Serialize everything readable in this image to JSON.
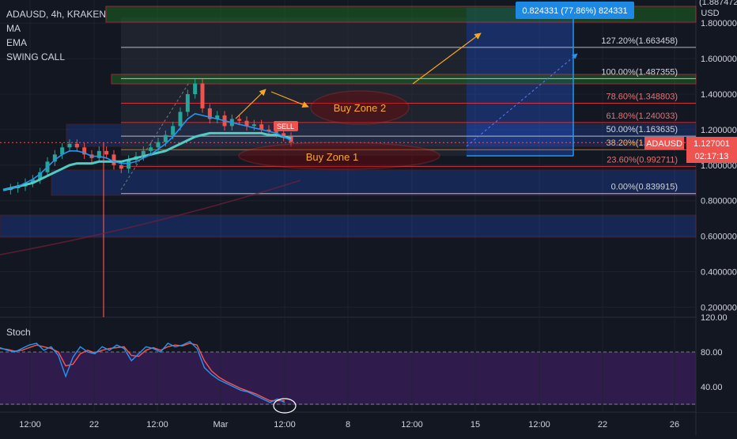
{
  "header": {
    "symbol": "ADAUSD, 4h, KRAKEN",
    "indicators": [
      "MA",
      "EMA",
      "SWING CALL"
    ]
  },
  "currency": "USD",
  "oscillator_label": "Stoch",
  "price_tag": {
    "symbol": "ADAUSD",
    "price": "1.127001",
    "countdown": "02:17:13"
  },
  "measure_label": "0.824331 (77.86%) 824331",
  "top_partial_label": "(1.887472)",
  "zone_labels": [
    "Buy Zone 2",
    "Buy Zone 1"
  ],
  "sell_tag": "SELL",
  "colors": {
    "background": "#131722",
    "grid": "#1e222d",
    "up": "#26a69a",
    "down": "#ef5350",
    "ma": "#2196f3",
    "ema": "#4ecdc4",
    "fib_red": "#f23645",
    "zone_fill": "#2962ff",
    "ellipse": "#b71c1c",
    "arrow": "#f5a623",
    "stoch_fill": "#3a1f5c"
  },
  "chart_data": [
    {
      "type": "line",
      "description": "ADAUSD 4h candlestick price chart with moving averages and Fibonacci retracement",
      "x_ticks": [
        "12:00",
        "22",
        "12:00",
        "Mar",
        "12:00",
        "8",
        "12:00",
        "15",
        "12:00",
        "22",
        "26"
      ],
      "y_ticks": [
        "1.800000",
        "1.600000",
        "1.400000",
        "1.200000",
        "1.000000",
        "0.800000",
        "0.600000",
        "0.400000",
        "0.200000"
      ],
      "ylim": [
        0.15,
        1.9
      ],
      "current_price": 1.127001,
      "fib_levels": [
        {
          "label": "127.20%(1.663458)",
          "value": 1.663458
        },
        {
          "label": "100.00%(1.487355)",
          "value": 1.487355
        },
        {
          "label": "78.60%(1.348803)",
          "value": 1.348803
        },
        {
          "label": "61.80%(1.240033)",
          "value": 1.240033
        },
        {
          "label": "50.00%(1.163635)",
          "value": 1.163635
        },
        {
          "label": "38.20%(1.087237)",
          "value": 1.087237
        },
        {
          "label": "23.60%(0.992711)",
          "value": 0.992711
        },
        {
          "label": "0.00%(0.839915)",
          "value": 0.839915
        }
      ],
      "price_series": [
        0.86,
        0.87,
        0.88,
        0.9,
        0.92,
        0.96,
        1.02,
        1.06,
        1.1,
        1.12,
        1.1,
        1.06,
        1.04,
        1.08,
        1.06,
        1.0,
        0.98,
        1.03,
        1.05,
        1.08,
        1.1,
        1.13,
        1.17,
        1.22,
        1.3,
        1.4,
        1.46,
        1.32,
        1.26,
        1.28,
        1.22,
        1.26,
        1.25,
        1.22,
        1.23,
        1.2,
        1.19,
        1.18,
        1.16,
        1.13
      ],
      "ma_series": [
        0.86,
        0.87,
        0.88,
        0.9,
        0.92,
        0.95,
        0.99,
        1.03,
        1.06,
        1.08,
        1.08,
        1.07,
        1.05,
        1.05,
        1.04,
        1.02,
        1.01,
        1.01,
        1.02,
        1.04,
        1.06,
        1.09,
        1.12,
        1.16,
        1.21,
        1.26,
        1.29,
        1.28,
        1.27,
        1.26,
        1.25,
        1.24,
        1.23,
        1.22,
        1.21,
        1.2,
        1.19,
        1.18,
        1.16,
        1.14
      ],
      "ema_series": [
        0.86,
        0.87,
        0.88,
        0.89,
        0.9,
        0.92,
        0.94,
        0.96,
        0.98,
        1.0,
        1.01,
        1.01,
        1.01,
        1.02,
        1.02,
        1.02,
        1.02,
        1.03,
        1.04,
        1.05,
        1.06,
        1.07,
        1.08,
        1.1,
        1.12,
        1.14,
        1.16,
        1.17,
        1.18,
        1.18,
        1.18,
        1.18,
        1.18,
        1.18,
        1.18,
        1.18,
        1.17,
        1.17,
        1.16,
        1.15
      ]
    },
    {
      "type": "line",
      "description": "Stochastic oscillator",
      "y_ticks": [
        "120.00",
        "80.00",
        "40.00"
      ],
      "ylim": [
        20,
        120
      ],
      "k_series": [
        85,
        82,
        80,
        84,
        88,
        90,
        82,
        86,
        76,
        52,
        74,
        86,
        80,
        78,
        86,
        82,
        88,
        84,
        70,
        78,
        86,
        84,
        80,
        90,
        86,
        88,
        92,
        84,
        62,
        54,
        48,
        44,
        40,
        36,
        34,
        30,
        26,
        22,
        26,
        22
      ],
      "d_series": [
        84,
        83,
        81,
        82,
        85,
        88,
        86,
        84,
        80,
        64,
        66,
        78,
        82,
        79,
        82,
        84,
        85,
        86,
        76,
        75,
        82,
        85,
        82,
        86,
        88,
        87,
        90,
        88,
        70,
        58,
        51,
        46,
        42,
        38,
        35,
        32,
        28,
        24,
        24,
        24
      ]
    }
  ]
}
